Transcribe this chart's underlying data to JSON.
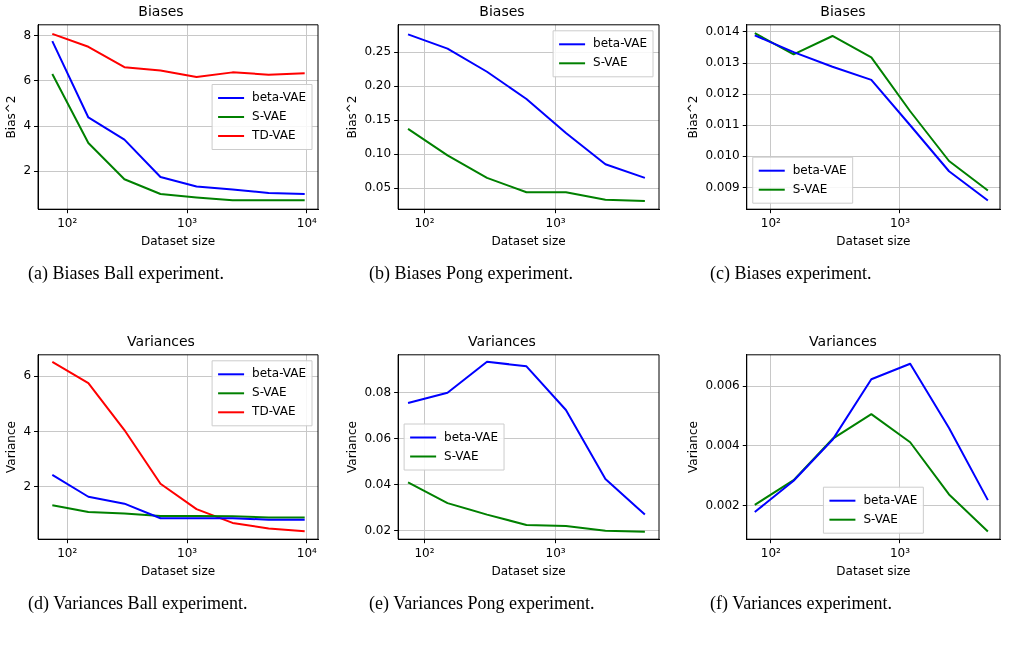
{
  "chart_data": [
    {
      "type": "line",
      "title": "Biases",
      "xlabel": "Dataset size",
      "ylabel": "Bias^2",
      "log": "x",
      "grid": true,
      "legend": "right",
      "x": [
        75,
        150,
        300,
        600,
        1200,
        2400,
        4800,
        9600
      ],
      "xlim": [
        57,
        12400
      ],
      "xticks": [
        {
          "value": 100,
          "label": "10²"
        },
        {
          "value": 1000,
          "label": "10³"
        },
        {
          "value": 10000,
          "label": "10⁴"
        }
      ],
      "ylim": [
        0.33,
        8.47
      ],
      "yticks": [
        2,
        4,
        6,
        8
      ],
      "series": [
        {
          "name": "beta-VAE",
          "color": "#0000ff",
          "values": [
            7.75,
            4.38,
            3.4,
            1.75,
            1.33,
            1.2,
            1.05,
            1.0
          ]
        },
        {
          "name": "S-VAE",
          "color": "#008000",
          "values": [
            6.3,
            3.25,
            1.65,
            1.0,
            0.85,
            0.72,
            0.72,
            0.72
          ]
        },
        {
          "name": "TD-VAE",
          "color": "#ff0000",
          "values": [
            8.07,
            7.5,
            6.6,
            6.45,
            6.17,
            6.37,
            6.27,
            6.33
          ]
        }
      ],
      "annotations": [
        "(a) Biases Ball experiment."
      ]
    },
    {
      "type": "line",
      "title": "Biases",
      "xlabel": "Dataset size",
      "ylabel": "Bias^2",
      "log": "x",
      "grid": true,
      "legend": "top right",
      "x": [
        75,
        150,
        300,
        600,
        1200,
        2400,
        4800
      ],
      "xlim": [
        63,
        6150
      ],
      "xticks": [
        {
          "value": 100,
          "label": "10²"
        },
        {
          "value": 1000,
          "label": "10³"
        }
      ],
      "ylim": [
        0.019,
        0.29
      ],
      "yticks": [
        {
          "value": 0.05,
          "label": "0.05"
        },
        {
          "value": 0.1,
          "label": "0.10"
        },
        {
          "value": 0.15,
          "label": "0.15"
        },
        {
          "value": 0.2,
          "label": "0.20"
        },
        {
          "value": 0.25,
          "label": "0.25"
        }
      ],
      "series": [
        {
          "name": "beta-VAE",
          "color": "#0000ff",
          "values": [
            0.276,
            0.255,
            0.221,
            0.181,
            0.131,
            0.085,
            0.065
          ]
        },
        {
          "name": "S-VAE",
          "color": "#008000",
          "values": [
            0.137,
            0.098,
            0.065,
            0.044,
            0.044,
            0.033,
            0.031
          ]
        }
      ],
      "annotations": [
        "(b) Biases Pong experiment."
      ]
    },
    {
      "type": "line",
      "title": "Biases",
      "xlabel": "Dataset size",
      "ylabel": "Bias^2",
      "log": "x",
      "grid": true,
      "legend": "bottom left",
      "x": [
        75,
        150,
        300,
        600,
        1200,
        2400,
        4800
      ],
      "xlim": [
        65,
        5960
      ],
      "xticks": [
        {
          "value": 100,
          "label": "10²"
        },
        {
          "value": 1000,
          "label": "10³"
        }
      ],
      "ylim": [
        0.0083,
        0.01423
      ],
      "yticks": [
        {
          "value": 0.009,
          "label": "0.009"
        },
        {
          "value": 0.01,
          "label": "0.010"
        },
        {
          "value": 0.011,
          "label": "0.011"
        },
        {
          "value": 0.012,
          "label": "0.012"
        },
        {
          "value": 0.013,
          "label": "0.013"
        },
        {
          "value": 0.014,
          "label": "0.014"
        }
      ],
      "series": [
        {
          "name": "beta-VAE",
          "color": "#0000ff",
          "values": [
            0.01389,
            0.01335,
            0.01288,
            0.01246,
            0.011,
            0.00952,
            0.00858
          ]
        },
        {
          "name": "S-VAE",
          "color": "#008000",
          "values": [
            0.01396,
            0.01328,
            0.01387,
            0.01318,
            0.01145,
            0.00985,
            0.0089
          ]
        }
      ],
      "annotations": [
        "(c) Biases experiment."
      ]
    },
    {
      "type": "line",
      "title": "Variances",
      "xlabel": "Dataset size",
      "ylabel": "Variance",
      "log": "x",
      "grid": true,
      "legend": "top right",
      "x": [
        75,
        150,
        300,
        600,
        1200,
        2400,
        4800,
        9600
      ],
      "xlim": [
        57,
        12400
      ],
      "xticks": [
        {
          "value": 100,
          "label": "10²"
        },
        {
          "value": 1000,
          "label": "10³"
        },
        {
          "value": 10000,
          "label": "10⁴"
        }
      ],
      "ylim": [
        0.09,
        6.78
      ],
      "yticks": [
        2,
        4,
        6
      ],
      "series": [
        {
          "name": "beta-VAE",
          "color": "#0000ff",
          "values": [
            2.42,
            1.63,
            1.38,
            0.85,
            0.85,
            0.85,
            0.8,
            0.8
          ]
        },
        {
          "name": "S-VAE",
          "color": "#008000",
          "values": [
            1.32,
            1.08,
            1.02,
            0.93,
            0.93,
            0.92,
            0.88,
            0.88
          ]
        },
        {
          "name": "TD-VAE",
          "color": "#ff0000",
          "values": [
            6.52,
            5.75,
            4.05,
            2.1,
            1.18,
            0.68,
            0.48,
            0.38
          ]
        }
      ],
      "annotations": [
        "(d) Variances Ball experiment."
      ]
    },
    {
      "type": "line",
      "title": "Variances",
      "xlabel": "Dataset size",
      "ylabel": "Variance",
      "log": "x",
      "grid": true,
      "legend": "left",
      "x": [
        75,
        150,
        300,
        600,
        1200,
        2400,
        4800
      ],
      "xlim": [
        63,
        6150
      ],
      "xticks": [
        {
          "value": 100,
          "label": "10²"
        },
        {
          "value": 1000,
          "label": "10³"
        }
      ],
      "ylim": [
        0.0163,
        0.0965
      ],
      "yticks": [
        {
          "value": 0.02,
          "label": "0.02"
        },
        {
          "value": 0.04,
          "label": "0.04"
        },
        {
          "value": 0.06,
          "label": "0.06"
        },
        {
          "value": 0.08,
          "label": "0.08"
        }
      ],
      "series": [
        {
          "name": "beta-VAE",
          "color": "#0000ff",
          "values": [
            0.0755,
            0.08,
            0.0935,
            0.0915,
            0.0725,
            0.0425,
            0.027
          ]
        },
        {
          "name": "S-VAE",
          "color": "#008000",
          "values": [
            0.041,
            0.032,
            0.027,
            0.0225,
            0.022,
            0.02,
            0.0195
          ]
        }
      ],
      "annotations": [
        "(e) Variances Pong experiment."
      ]
    },
    {
      "type": "line",
      "title": "Variances",
      "xlabel": "Dataset size",
      "ylabel": "Variance",
      "log": "x",
      "grid": true,
      "legend": "bottom",
      "x": [
        75,
        150,
        300,
        600,
        1200,
        2400,
        4800
      ],
      "xlim": [
        65,
        5960
      ],
      "xticks": [
        {
          "value": 100,
          "label": "10²"
        },
        {
          "value": 1000,
          "label": "10³"
        }
      ],
      "ylim": [
        0.00087,
        0.00705
      ],
      "yticks": [
        {
          "value": 0.002,
          "label": "0.002"
        },
        {
          "value": 0.004,
          "label": "0.004"
        },
        {
          "value": 0.006,
          "label": "0.006"
        }
      ],
      "series": [
        {
          "name": "beta-VAE",
          "color": "#0000ff",
          "values": [
            0.00178,
            0.00283,
            0.0042,
            0.00623,
            0.00675,
            0.0046,
            0.00218
          ]
        },
        {
          "name": "S-VAE",
          "color": "#008000",
          "values": [
            0.00202,
            0.00285,
            0.00423,
            0.00506,
            0.00412,
            0.00237,
            0.00113
          ]
        }
      ],
      "annotations": [
        "(f) Variances experiment."
      ]
    }
  ]
}
